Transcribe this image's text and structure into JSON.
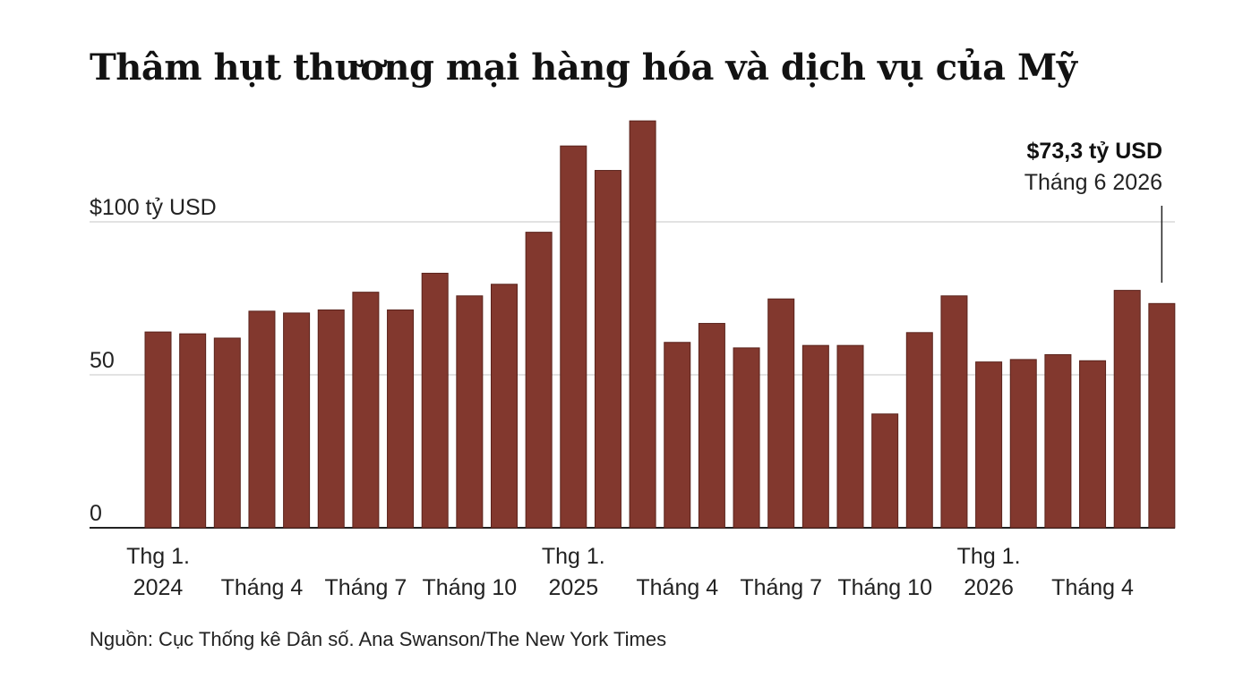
{
  "chart_data": {
    "type": "bar",
    "title": "Thâm hụt thương mại hàng hóa và dịch vụ của Mỹ",
    "y_ticks": [
      {
        "value": 100,
        "label": "$100 tỷ USD"
      },
      {
        "value": 50,
        "label": "50"
      },
      {
        "value": 0,
        "label": "0"
      }
    ],
    "ylim": [
      0,
      135
    ],
    "grid": true,
    "bar_color": "#82382e",
    "categories": [
      "2024-01",
      "2024-02",
      "2024-03",
      "2024-04",
      "2024-05",
      "2024-06",
      "2024-07",
      "2024-08",
      "2024-09",
      "2024-10",
      "2024-11",
      "2024-12",
      "2025-01",
      "2025-02",
      "2025-03",
      "2025-04",
      "2025-05",
      "2025-06",
      "2025-07",
      "2025-08",
      "2025-09",
      "2025-10",
      "2025-11",
      "2025-12",
      "2026-01",
      "2026-02",
      "2026-03",
      "2026-04",
      "2026-05",
      "2026-06"
    ],
    "values": [
      64.0,
      63.4,
      62.0,
      70.8,
      70.2,
      71.2,
      77.0,
      71.2,
      83.2,
      75.8,
      79.6,
      96.6,
      124.8,
      116.8,
      133.0,
      60.6,
      66.8,
      58.8,
      74.8,
      59.6,
      59.6,
      37.2,
      63.8,
      75.8,
      54.2,
      55.0,
      56.6,
      54.6,
      77.6,
      73.3
    ],
    "x_tick_labels": [
      {
        "index": 0,
        "lines": [
          "Thg 1.",
          "2024"
        ]
      },
      {
        "index": 3,
        "lines": [
          "Tháng 4"
        ]
      },
      {
        "index": 6,
        "lines": [
          "Tháng 7"
        ]
      },
      {
        "index": 9,
        "lines": [
          "Tháng 10"
        ]
      },
      {
        "index": 12,
        "lines": [
          "Thg 1.",
          "2025"
        ]
      },
      {
        "index": 15,
        "lines": [
          "Tháng 4"
        ]
      },
      {
        "index": 18,
        "lines": [
          "Tháng 7"
        ]
      },
      {
        "index": 21,
        "lines": [
          "Tháng 10"
        ]
      },
      {
        "index": 24,
        "lines": [
          "Thg 1.",
          "2026"
        ]
      },
      {
        "index": 27,
        "lines": [
          "Tháng 4"
        ]
      }
    ],
    "annotation": {
      "index": 29,
      "value_label": "$73,3 tỷ USD",
      "date_label": "Tháng 6 2026"
    }
  },
  "source": "Nguồn: Cục Thống kê Dân số. Ana Swanson/The New York Times"
}
